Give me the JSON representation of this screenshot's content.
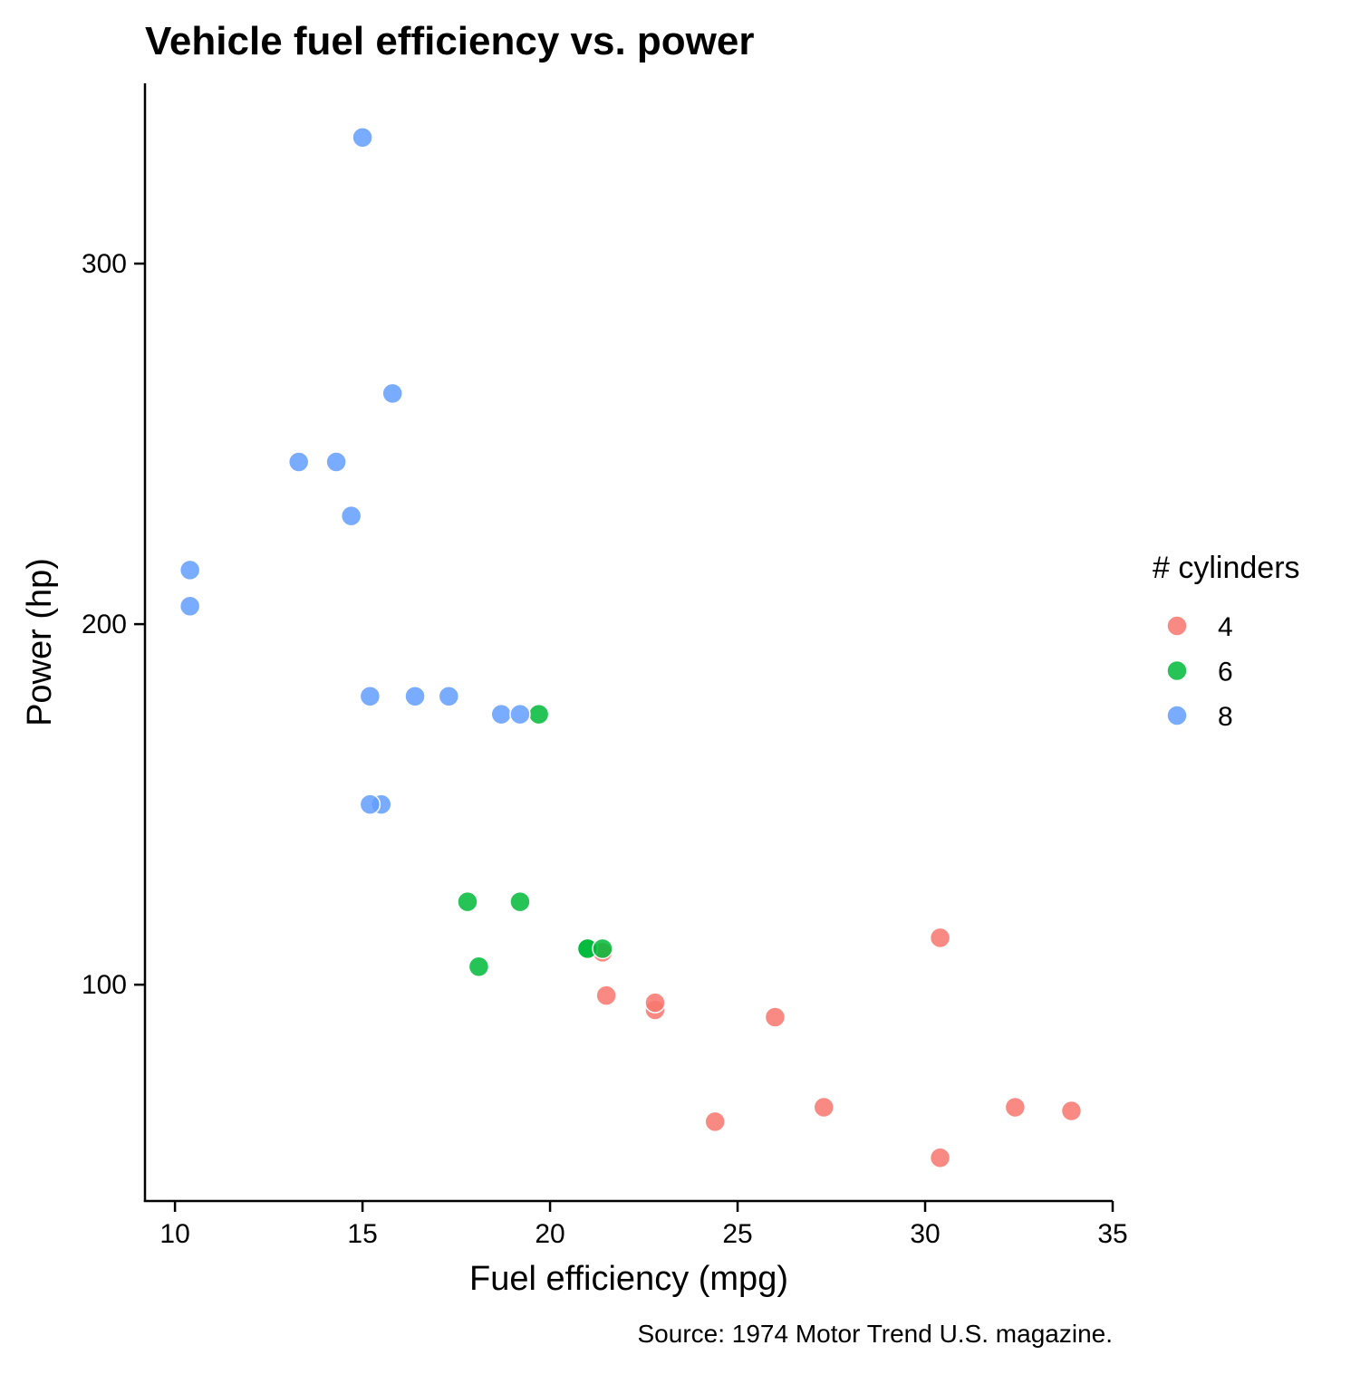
{
  "chart_data": {
    "type": "scatter",
    "title": "Vehicle fuel efficiency vs. power",
    "xlabel": "Fuel efficiency (mpg)",
    "ylabel": "Power (hp)",
    "caption": "Source: 1974 Motor Trend U.S. magazine.",
    "xlim": [
      9.2,
      35
    ],
    "ylim": [
      40,
      350
    ],
    "x_ticks": [
      10,
      15,
      20,
      25,
      30,
      35
    ],
    "y_ticks": [
      100,
      200,
      300
    ],
    "grid": false,
    "legend": {
      "title": "# cylinders",
      "position": "right"
    },
    "series": [
      {
        "name": "4",
        "color": "#F8766D",
        "points": [
          {
            "x": 22.8,
            "y": 93
          },
          {
            "x": 24.4,
            "y": 62
          },
          {
            "x": 22.8,
            "y": 95
          },
          {
            "x": 32.4,
            "y": 66
          },
          {
            "x": 30.4,
            "y": 52
          },
          {
            "x": 33.9,
            "y": 65
          },
          {
            "x": 21.5,
            "y": 97
          },
          {
            "x": 27.3,
            "y": 66
          },
          {
            "x": 26.0,
            "y": 91
          },
          {
            "x": 30.4,
            "y": 113
          },
          {
            "x": 21.4,
            "y": 109
          }
        ]
      },
      {
        "name": "6",
        "color": "#00BA38",
        "points": [
          {
            "x": 21.0,
            "y": 110
          },
          {
            "x": 21.0,
            "y": 110
          },
          {
            "x": 21.4,
            "y": 110
          },
          {
            "x": 18.1,
            "y": 105
          },
          {
            "x": 19.2,
            "y": 123
          },
          {
            "x": 17.8,
            "y": 123
          },
          {
            "x": 19.7,
            "y": 175
          }
        ]
      },
      {
        "name": "8",
        "color": "#619CFF",
        "points": [
          {
            "x": 18.7,
            "y": 175
          },
          {
            "x": 14.3,
            "y": 245
          },
          {
            "x": 16.4,
            "y": 180
          },
          {
            "x": 17.3,
            "y": 180
          },
          {
            "x": 15.2,
            "y": 180
          },
          {
            "x": 10.4,
            "y": 205
          },
          {
            "x": 10.4,
            "y": 215
          },
          {
            "x": 14.7,
            "y": 230
          },
          {
            "x": 15.5,
            "y": 150
          },
          {
            "x": 15.2,
            "y": 150
          },
          {
            "x": 13.3,
            "y": 245
          },
          {
            "x": 19.2,
            "y": 175
          },
          {
            "x": 15.8,
            "y": 264
          },
          {
            "x": 15.0,
            "y": 335
          }
        ]
      }
    ]
  }
}
